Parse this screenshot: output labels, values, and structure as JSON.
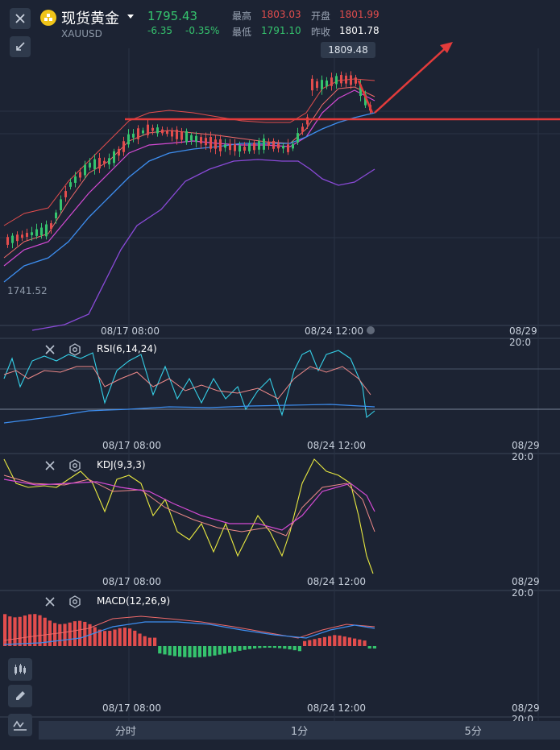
{
  "header": {
    "title": "现货黄金",
    "symbol": "XAUUSD",
    "price": "1795.43",
    "change": "-6.35",
    "change_pct": "-0.35%",
    "high_label": "最高",
    "high": "1803.03",
    "open_label": "开盘",
    "open": "1801.99",
    "low_label": "最低",
    "low": "1791.10",
    "prev_close_label": "昨收",
    "prev_close": "1801.78"
  },
  "main_chart": {
    "max_label": "1809.48",
    "min_label": "1741.52",
    "time_labels": [
      "08/17 08:00",
      "08/24 12:00",
      "08/29 20:0"
    ]
  },
  "indicators": {
    "rsi": {
      "label": "RSI(6,14,24)",
      "time_labels": [
        "08/17 08:00",
        "08/24 12:00",
        "08/29 20:0"
      ]
    },
    "kdj": {
      "label": "KDJ(9,3,3)",
      "time_labels": [
        "08/17 08:00",
        "08/24 12:00",
        "08/29 20:0"
      ]
    },
    "macd": {
      "label": "MACD(12,26,9)",
      "time_labels": [
        "08/17 08:00",
        "08/24 12:00",
        "08/29 20:0"
      ]
    }
  },
  "tabs": [
    "分时",
    "1分",
    "5分"
  ],
  "colors": {
    "up": "#e34d4d",
    "down": "#35c46e",
    "bg": "#1c2333",
    "accent": "#f0c419"
  },
  "icons": [
    "close-icon",
    "collapse-icon",
    "dropdown-icon",
    "settings-icon",
    "candlestick-icon",
    "pen-icon",
    "draw-line-icon"
  ]
}
